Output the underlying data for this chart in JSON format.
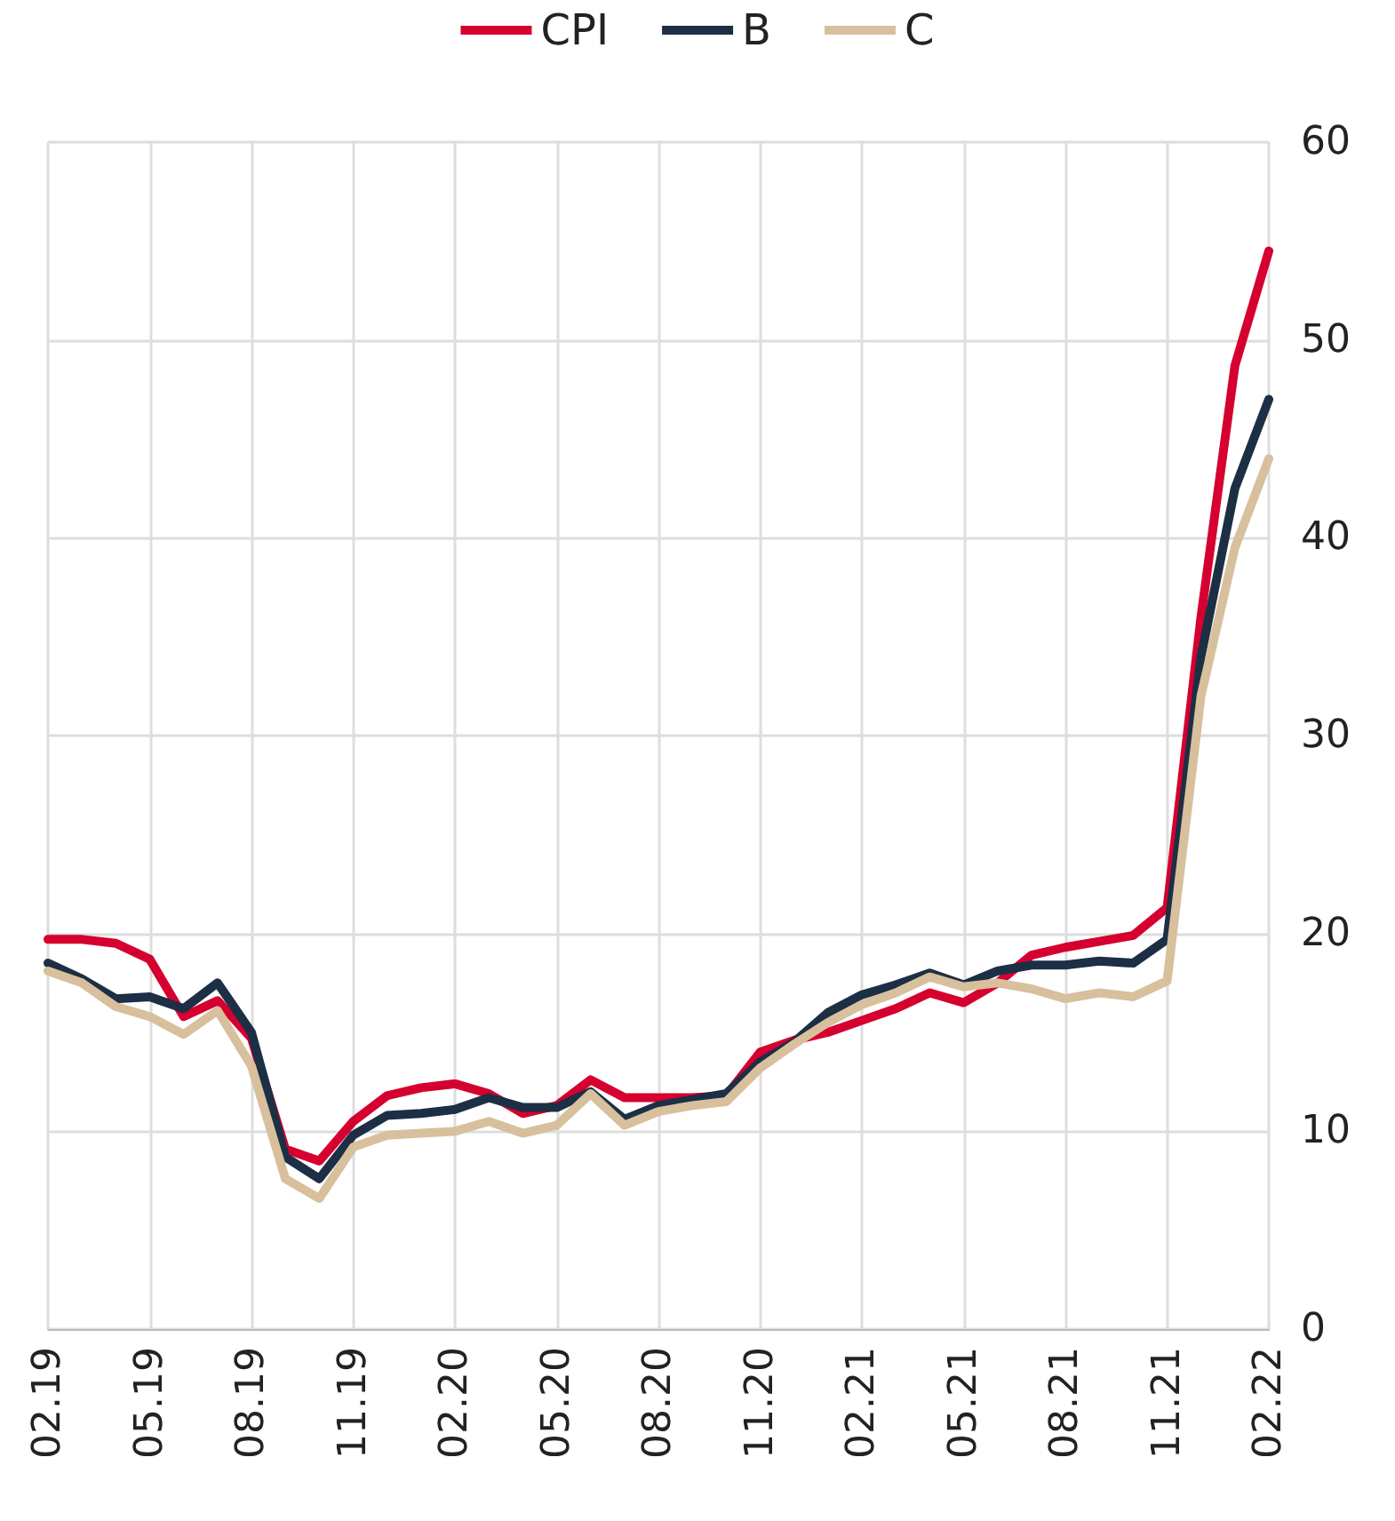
{
  "chart_data": {
    "type": "line",
    "categories": [
      "02.19",
      null,
      null,
      "05.19",
      null,
      null,
      "08.19",
      null,
      null,
      "11.19",
      null,
      null,
      "02.20",
      null,
      null,
      "05.20",
      null,
      null,
      "08.20",
      null,
      null,
      "11.20",
      null,
      null,
      "02.21",
      null,
      null,
      "05.21",
      null,
      null,
      "08.21",
      null,
      null,
      "11.21",
      null,
      null,
      "02.22"
    ],
    "series": [
      {
        "name": "CPI",
        "color": "#d5002f",
        "values": [
          19.7,
          19.7,
          19.5,
          18.7,
          15.8,
          16.6,
          14.7,
          9.1,
          8.5,
          10.5,
          11.8,
          12.2,
          12.4,
          11.9,
          10.9,
          11.3,
          12.6,
          11.7,
          11.7,
          11.7,
          11.8,
          14.0,
          14.6,
          15.0,
          15.6,
          16.2,
          17.0,
          16.5,
          17.5,
          18.9,
          19.3,
          19.6,
          19.9,
          21.3,
          36,
          48.7,
          54.5
        ]
      },
      {
        "name": "B",
        "color": "#1c2f45",
        "values": [
          18.5,
          17.7,
          16.7,
          16.8,
          16.2,
          17.5,
          15.0,
          8.7,
          7.6,
          9.8,
          10.8,
          10.9,
          11.1,
          11.7,
          11.2,
          11.2,
          12.0,
          10.6,
          11.3,
          11.6,
          11.9,
          13.5,
          14.5,
          16.0,
          16.9,
          17.4,
          18.0,
          17.4,
          18.1,
          18.4,
          18.4,
          18.6,
          18.5,
          19.7,
          34,
          42.5,
          47.0
        ]
      },
      {
        "name": "C",
        "color": "#d8c09d",
        "values": [
          18.1,
          17.5,
          16.3,
          15.8,
          14.9,
          16.1,
          13.3,
          7.6,
          6.6,
          9.2,
          9.8,
          9.9,
          10.0,
          10.5,
          9.9,
          10.3,
          11.9,
          10.3,
          11.0,
          11.3,
          11.5,
          13.2,
          14.4,
          15.5,
          16.4,
          17.0,
          17.8,
          17.3,
          17.5,
          17.2,
          16.7,
          17.0,
          16.8,
          17.6,
          32,
          39.5,
          44.0
        ]
      }
    ],
    "ylim": [
      0,
      60
    ],
    "yticks": [
      0,
      10,
      20,
      30,
      40,
      50,
      60
    ],
    "grid": true,
    "legend": "top",
    "marker": "none",
    "line_style": "solid"
  }
}
